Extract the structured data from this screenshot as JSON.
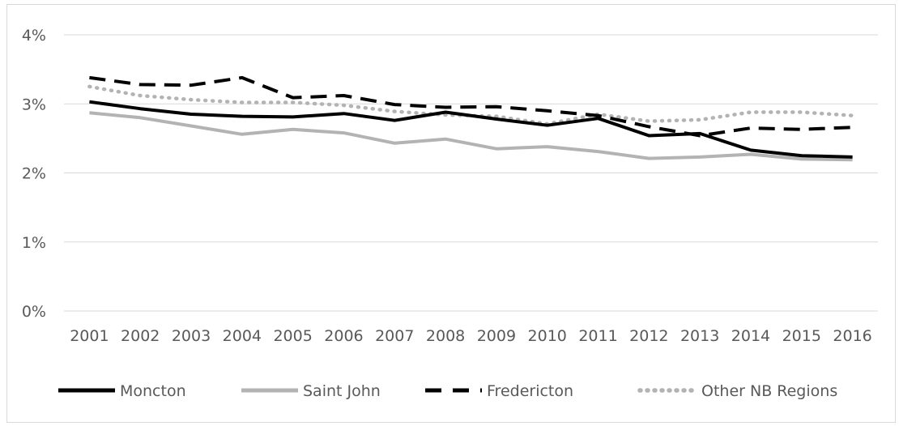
{
  "chart_data": {
    "type": "line",
    "title": "",
    "xlabel": "",
    "ylabel": "",
    "categories": [
      "2001",
      "2002",
      "2003",
      "2004",
      "2005",
      "2006",
      "2007",
      "2008",
      "2009",
      "2010",
      "2011",
      "2012",
      "2013",
      "2014",
      "2015",
      "2016"
    ],
    "y_ticks": [
      "0%",
      "1%",
      "2%",
      "3%",
      "4%"
    ],
    "ylim": [
      0,
      4
    ],
    "grid": true,
    "legend_position": "bottom",
    "series": [
      {
        "name": "Moncton",
        "style": "solid",
        "color": "#000000",
        "values": [
          3.03,
          2.93,
          2.85,
          2.82,
          2.81,
          2.86,
          2.76,
          2.88,
          2.78,
          2.69,
          2.79,
          2.54,
          2.57,
          2.33,
          2.25,
          2.23
        ]
      },
      {
        "name": "Saint John",
        "style": "solid",
        "color": "#b3b3b3",
        "values": [
          2.87,
          2.8,
          2.68,
          2.56,
          2.63,
          2.58,
          2.43,
          2.49,
          2.35,
          2.38,
          2.31,
          2.21,
          2.23,
          2.27,
          2.2,
          2.19
        ]
      },
      {
        "name": "Fredericton",
        "style": "dashed",
        "color": "#000000",
        "values": [
          3.38,
          3.28,
          3.27,
          3.38,
          3.09,
          3.12,
          2.99,
          2.95,
          2.96,
          2.9,
          2.83,
          2.67,
          2.54,
          2.65,
          2.63,
          2.66
        ]
      },
      {
        "name": "Other NB Regions",
        "style": "dotted",
        "color": "#b3b3b3",
        "values": [
          3.25,
          3.12,
          3.06,
          3.02,
          3.02,
          2.98,
          2.89,
          2.84,
          2.82,
          2.71,
          2.85,
          2.75,
          2.77,
          2.88,
          2.88,
          2.83
        ]
      }
    ]
  }
}
